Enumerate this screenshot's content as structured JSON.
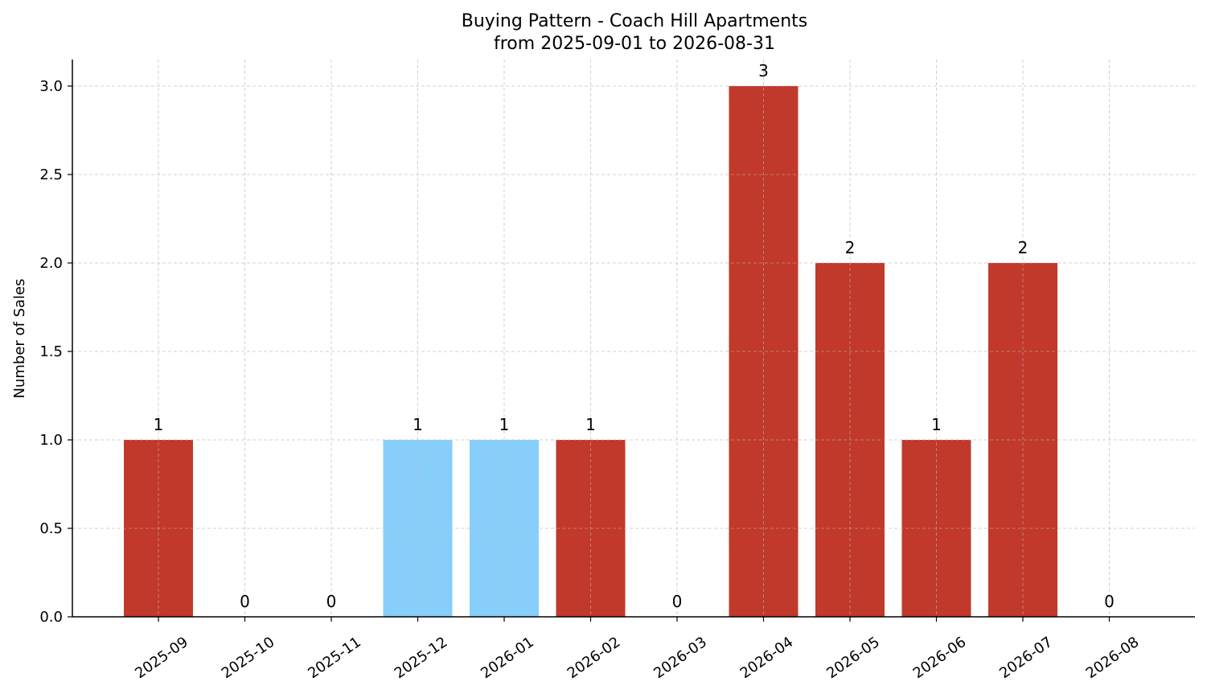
{
  "chart_data": {
    "type": "bar",
    "title": "Buying Pattern - Coach Hill Apartments",
    "subtitle": "from 2025-09-01 to 2026-08-31",
    "xlabel": "",
    "ylabel": "Number of Sales",
    "categories": [
      "2025-09",
      "2025-10",
      "2025-11",
      "2025-12",
      "2026-01",
      "2026-02",
      "2026-03",
      "2026-04",
      "2026-05",
      "2026-06",
      "2026-07",
      "2026-08"
    ],
    "values": [
      1,
      0,
      0,
      1,
      1,
      1,
      0,
      3,
      2,
      1,
      2,
      0
    ],
    "value_labels": [
      "1",
      "0",
      "0",
      "1",
      "1",
      "1",
      "0",
      "3",
      "2",
      "1",
      "2",
      "0"
    ],
    "bar_colors": [
      "#c0392b",
      "#c0392b",
      "#c0392b",
      "#87cefa",
      "#87cefa",
      "#c0392b",
      "#c0392b",
      "#c0392b",
      "#c0392b",
      "#c0392b",
      "#c0392b",
      "#c0392b"
    ],
    "ylim": [
      0,
      3.15
    ],
    "yticks": [
      0.0,
      0.5,
      1.0,
      1.5,
      2.0,
      2.5,
      3.0
    ],
    "ytick_labels": [
      "0.0",
      "0.5",
      "1.0",
      "1.5",
      "2.0",
      "2.5",
      "3.0"
    ],
    "grid": true,
    "legend": "none"
  }
}
